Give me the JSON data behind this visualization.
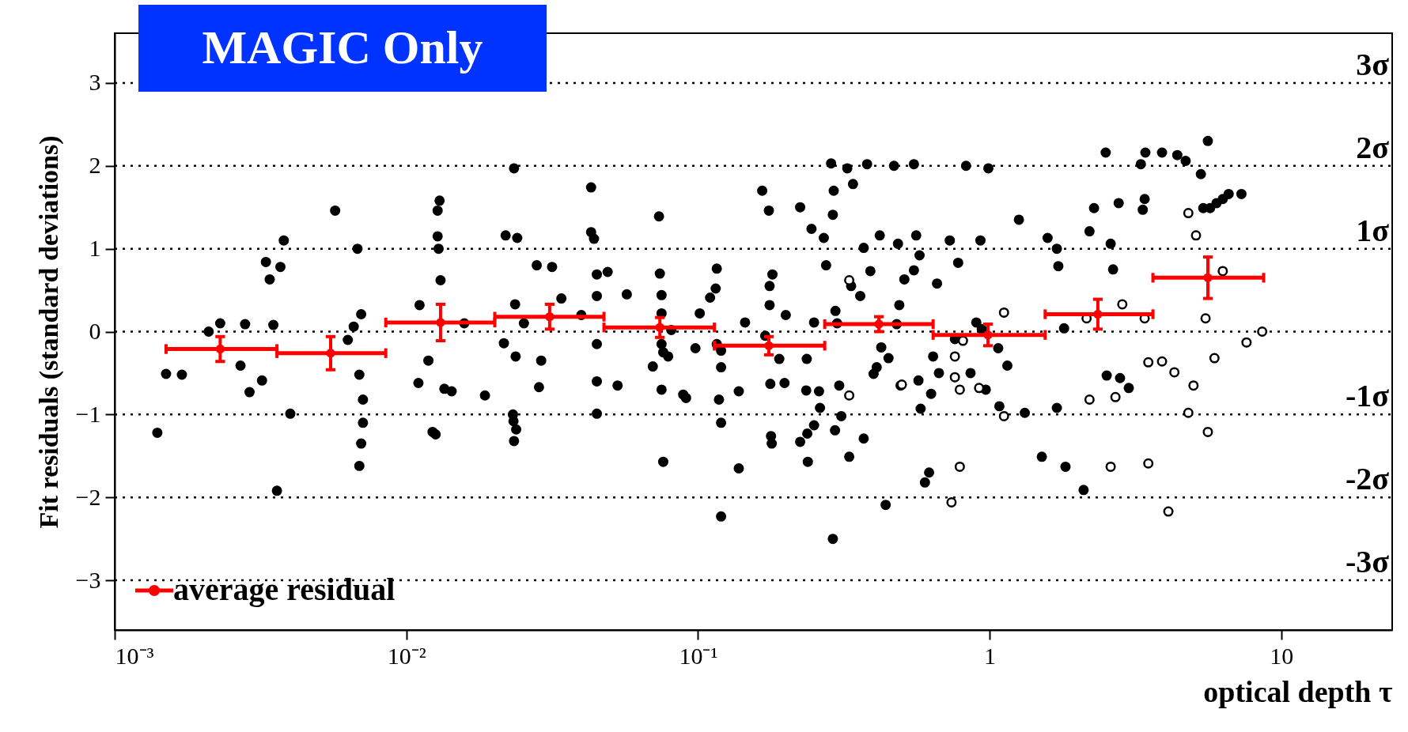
{
  "chart_data": {
    "type": "scatter",
    "title": "MAGIC Only",
    "xlabel": "optical depth τ",
    "ylabel": "Fit residuals (standard deviations)",
    "log": "x",
    "xlim": [
      0.001,
      24
    ],
    "ylim": [
      -3.6,
      3.6
    ],
    "xticks": [
      {
        "value": 0.001,
        "label": "10⁻³"
      },
      {
        "value": 0.01,
        "label": "10⁻²"
      },
      {
        "value": 0.1,
        "label": "10⁻¹"
      },
      1,
      10
    ],
    "yticks": [
      {
        "value": -3,
        "label": "−3"
      },
      {
        "value": -2,
        "label": "−2"
      },
      {
        "value": -1,
        "label": "−1"
      },
      0,
      1,
      2,
      3
    ],
    "legend": "bottom left",
    "ref_lines": [
      {
        "axis": "y",
        "value": 3,
        "label": "3σ",
        "line_style": "dotted",
        "color": "#000000"
      },
      {
        "axis": "y",
        "value": 2,
        "label": "2σ",
        "line_style": "dotted",
        "color": "#000000"
      },
      {
        "axis": "y",
        "value": 1,
        "label": "1σ",
        "line_style": "dotted",
        "color": "#000000"
      },
      {
        "axis": "y",
        "value": 0,
        "label": null,
        "line_style": "dotted",
        "color": "#000000"
      },
      {
        "axis": "y",
        "value": -1,
        "label": "-1σ",
        "line_style": "dotted",
        "color": "#000000"
      },
      {
        "axis": "y",
        "value": -2,
        "label": "-2σ",
        "line_style": "dotted",
        "color": "#000000"
      },
      {
        "axis": "y",
        "value": -3,
        "label": "-3σ",
        "line_style": "dotted",
        "color": "#000000"
      }
    ],
    "series": [
      {
        "color": "#000000",
        "marker": "circle",
        "x": [
          0.0014,
          0.0015,
          0.0017,
          0.0021,
          0.0023,
          0.0027,
          0.0028,
          0.0029,
          0.0032,
          0.0033,
          0.0034,
          0.0035,
          0.0036,
          0.0037,
          0.0038,
          0.004,
          0.0057,
          0.0063,
          0.0066,
          0.0068,
          0.0069,
          0.0069,
          0.007,
          0.007,
          0.0071,
          0.0071,
          0.0111,
          0.011,
          0.0119,
          0.0123,
          0.0126,
          0.0128,
          0.013,
          0.0128,
          0.0129,
          0.0131,
          0.0135,
          0.0143,
          0.0158,
          0.0186,
          0.0216,
          0.0219,
          0.0232,
          0.0234,
          0.0234,
          0.0233,
          0.0238,
          0.024,
          0.0236,
          0.0237,
          0.0253,
          0.028,
          0.0285,
          0.029,
          0.0316,
          0.034,
          0.0398,
          0.043,
          0.043,
          0.044,
          0.045,
          0.045,
          0.045,
          0.045,
          0.045,
          0.049,
          0.053,
          0.057,
          0.07,
          0.0735,
          0.074,
          0.075,
          0.075,
          0.075,
          0.075,
          0.076,
          0.076,
          0.079,
          0.081,
          0.089,
          0.091,
          0.098,
          0.1014,
          0.11,
          0.115,
          0.116,
          0.116,
          0.118,
          0.12,
          0.12,
          0.12,
          0.12,
          0.138,
          0.138,
          0.145,
          0.166,
          0.17,
          0.175,
          0.176,
          0.176,
          0.177,
          0.178,
          0.179,
          0.18,
          0.19,
          0.198,
          0.2,
          0.224,
          0.224,
          0.235,
          0.236,
          0.237,
          0.238,
          0.245,
          0.25,
          0.25,
          0.26,
          0.262,
          0.27,
          0.275,
          0.286,
          0.29,
          0.29,
          0.292,
          0.295,
          0.296,
          0.3,
          0.305,
          0.31,
          0.325,
          0.33,
          0.335,
          0.34,
          0.36,
          0.37,
          0.37,
          0.38,
          0.39,
          0.4,
          0.41,
          0.42,
          0.425,
          0.44,
          0.45,
          0.47,
          0.48,
          0.485,
          0.49,
          0.495,
          0.51,
          0.55,
          0.55,
          0.56,
          0.57,
          0.575,
          0.58,
          0.6,
          0.62,
          0.63,
          0.64,
          0.66,
          0.67,
          0.73,
          0.76,
          0.78,
          0.83,
          0.86,
          0.9,
          0.93,
          0.94,
          0.97,
          0.99,
          1.07,
          1.08,
          1.15,
          1.26,
          1.32,
          1.51,
          1.58,
          1.7,
          1.7,
          1.72,
          1.8,
          1.82,
          2.1,
          2.2,
          2.28,
          2.5,
          2.52,
          2.6,
          2.65,
          2.77,
          2.8,
          3.0,
          3.3,
          3.35,
          3.4,
          3.42,
          3.9,
          4.4,
          4.7,
          5.3,
          5.6,
          5.4,
          5.7,
          6.0,
          6.3,
          6.6,
          7.3
        ],
        "values": [
          -1.22,
          -0.51,
          -0.52,
          0.0,
          0.1,
          -0.41,
          0.09,
          -0.73,
          -0.59,
          0.84,
          0.63,
          0.08,
          -1.92,
          0.78,
          1.1,
          -0.99,
          1.46,
          -0.1,
          0.06,
          1.0,
          -0.52,
          -1.62,
          -1.35,
          0.21,
          -0.82,
          -1.1,
          0.32,
          -0.62,
          -0.35,
          -1.21,
          -1.24,
          1.46,
          1.58,
          1.15,
          1.0,
          0.62,
          -0.69,
          -0.72,
          0.1,
          -0.77,
          -0.14,
          1.16,
          -1.0,
          1.97,
          -1.32,
          -1.08,
          -1.18,
          1.13,
          0.33,
          -0.3,
          0.1,
          0.8,
          -0.67,
          -0.35,
          0.78,
          0.4,
          0.2,
          1.74,
          1.2,
          1.12,
          0.43,
          0.69,
          -0.15,
          -0.6,
          -0.99,
          0.72,
          -0.65,
          0.45,
          -0.42,
          1.39,
          0.7,
          0.44,
          0.22,
          -0.15,
          -0.7,
          -1.57,
          -0.25,
          -0.3,
          0.02,
          -0.76,
          -0.8,
          -0.2,
          0.22,
          0.41,
          0.52,
          -0.15,
          0.76,
          -0.82,
          -1.1,
          -2.23,
          -0.43,
          -0.23,
          -0.72,
          -1.65,
          0.11,
          1.7,
          -0.05,
          1.46,
          0.32,
          0.55,
          -0.63,
          -1.26,
          -1.35,
          0.69,
          -0.33,
          -0.62,
          0.2,
          -1.33,
          1.5,
          -0.71,
          -0.33,
          -1.23,
          -1.57,
          1.24,
          -1.13,
          0.11,
          -0.72,
          -0.92,
          1.13,
          0.8,
          2.03,
          -2.5,
          1.41,
          1.7,
          -1.19,
          0.25,
          0.1,
          -0.65,
          -1.02,
          1.97,
          -1.51,
          0.55,
          1.78,
          0.43,
          1.01,
          -1.29,
          2.02,
          0.73,
          -0.51,
          -0.43,
          1.16,
          -0.19,
          -2.09,
          -0.32,
          2.0,
          0.09,
          1.06,
          0.32,
          -0.65,
          0.63,
          0.74,
          2.02,
          1.16,
          -0.59,
          0.92,
          -0.93,
          -1.82,
          -1.7,
          -0.75,
          -0.3,
          0.58,
          -0.5,
          1.1,
          -0.09,
          0.83,
          2.0,
          -0.5,
          0.11,
          1.1,
          0.03,
          -0.7,
          1.97,
          -0.2,
          -0.9,
          -0.41,
          1.35,
          -0.98,
          -1.51,
          1.13,
          -0.92,
          1.0,
          0.79,
          0.04,
          -1.63,
          -1.91,
          1.21,
          1.49,
          2.16,
          -0.53,
          1.06,
          0.75,
          1.55,
          -0.56,
          -0.68,
          2.02,
          1.47,
          1.6,
          2.16,
          2.16,
          2.13,
          2.06,
          1.9,
          2.3,
          1.49,
          1.49,
          1.55,
          1.6,
          1.66,
          1.66
        ]
      },
      {
        "color": "#ffffff",
        "marker": "circle",
        "x": [
          0.33,
          0.33,
          0.5,
          0.74,
          0.76,
          0.76,
          0.79,
          0.79,
          0.81,
          0.92,
          1.12,
          1.12,
          2.15,
          2.2,
          2.6,
          2.7,
          2.85,
          3.4,
          3.5,
          3.5,
          3.9,
          4.1,
          4.3,
          4.8,
          4.8,
          5.0,
          5.1,
          5.5,
          5.6,
          5.9,
          6.3,
          7.6,
          8.6
        ],
        "values": [
          0.62,
          -0.77,
          -0.64,
          -2.06,
          -0.3,
          -0.55,
          -0.7,
          -1.63,
          -0.11,
          -0.68,
          0.23,
          -1.02,
          0.16,
          -0.82,
          -1.63,
          -0.79,
          0.33,
          0.16,
          -0.37,
          -1.59,
          -0.36,
          -2.17,
          -0.49,
          1.43,
          -0.98,
          -0.65,
          1.16,
          0.16,
          -1.21,
          -0.32,
          0.73,
          -0.13,
          0.0
        ]
      },
      {
        "name": "average residual",
        "color": "#ff0000",
        "marker": "circle",
        "x": [
          0.0023,
          0.0055,
          0.0131,
          0.031,
          0.074,
          0.175,
          0.417,
          0.987,
          2.35,
          5.6
        ],
        "values": [
          -0.21,
          -0.26,
          0.11,
          0.18,
          0.05,
          -0.17,
          0.09,
          -0.04,
          0.21,
          0.65
        ],
        "errors": [
          0.15,
          0.2,
          0.22,
          0.15,
          0.12,
          0.11,
          0.09,
          0.13,
          0.18,
          0.25
        ],
        "xerrors": [
          [
            0.0015,
            0.0036
          ],
          [
            0.0036,
            0.0085
          ],
          [
            0.0085,
            0.0201
          ],
          [
            0.0201,
            0.0476
          ],
          [
            0.0476,
            0.1138
          ],
          [
            0.1138,
            0.272
          ],
          [
            0.272,
            0.64
          ],
          [
            0.64,
            1.55
          ],
          [
            1.55,
            3.63
          ],
          [
            3.63,
            8.7
          ]
        ]
      }
    ]
  }
}
